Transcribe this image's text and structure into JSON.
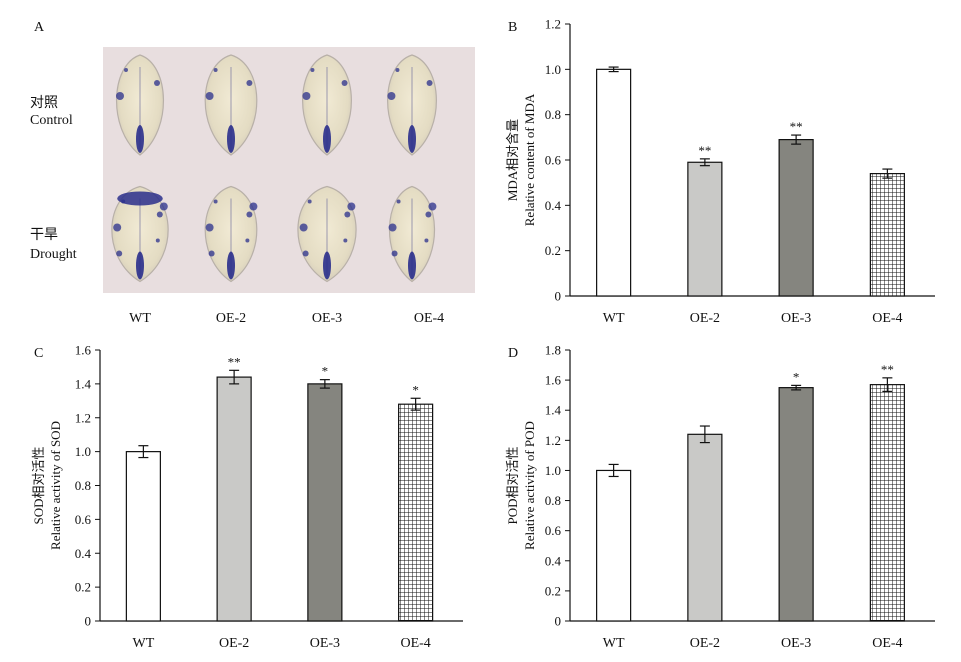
{
  "panel_a": {
    "letter": "A",
    "row_labels": [
      {
        "cn": "对照",
        "en": "Control"
      },
      {
        "cn": "干旱",
        "en": "Drought"
      }
    ],
    "categories": [
      "WT",
      "OE-2",
      "OE-3",
      "OE-4"
    ],
    "photo_background": "#e8dedf",
    "stain_color": "#2a2f8c"
  },
  "chart_data": [
    {
      "panel": "B",
      "type": "bar",
      "categories": [
        "WT",
        "OE-2",
        "OE-3",
        "OE-4"
      ],
      "values": [
        1.0,
        0.59,
        0.69,
        0.54
      ],
      "errors": [
        0.01,
        0.015,
        0.02,
        0.02
      ],
      "significance": [
        "",
        "**",
        "**",
        ""
      ],
      "ylabel_cn": "MDA相对含量",
      "ylabel_en": "Relative content of MDA",
      "ylim": [
        0,
        1.2
      ],
      "yticks": [
        "0",
        "0.2",
        "0.4",
        "0.6",
        "0.8",
        "1.0",
        "1.2"
      ]
    },
    {
      "panel": "C",
      "type": "bar",
      "categories": [
        "WT",
        "OE-2",
        "OE-3",
        "OE-4"
      ],
      "values": [
        1.0,
        1.44,
        1.4,
        1.28
      ],
      "errors": [
        0.035,
        0.04,
        0.025,
        0.035
      ],
      "significance": [
        "",
        "**",
        "*",
        "*"
      ],
      "ylabel_cn": "SOD相对活性",
      "ylabel_en": "Relative activity of SOD",
      "ylim": [
        0,
        1.6
      ],
      "yticks": [
        "0",
        "0.2",
        "0.4",
        "0.6",
        "0.8",
        "1.0",
        "1.2",
        "1.4",
        "1.6"
      ]
    },
    {
      "panel": "D",
      "type": "bar",
      "categories": [
        "WT",
        "OE-2",
        "OE-3",
        "OE-4"
      ],
      "values": [
        1.0,
        1.24,
        1.55,
        1.57
      ],
      "errors": [
        0.04,
        0.055,
        0.015,
        0.045
      ],
      "significance": [
        "",
        "",
        "*",
        "**"
      ],
      "ylabel_cn": "POD相对活性",
      "ylabel_en": "Relative activity of POD",
      "ylim": [
        0,
        1.8
      ],
      "yticks": [
        "0",
        "0.2",
        "0.4",
        "0.6",
        "0.8",
        "1.0",
        "1.2",
        "1.4",
        "1.6",
        "1.8"
      ]
    }
  ],
  "bar_styles": [
    "#ffffff",
    "#c9c9c7",
    "#85857f",
    "grid"
  ]
}
